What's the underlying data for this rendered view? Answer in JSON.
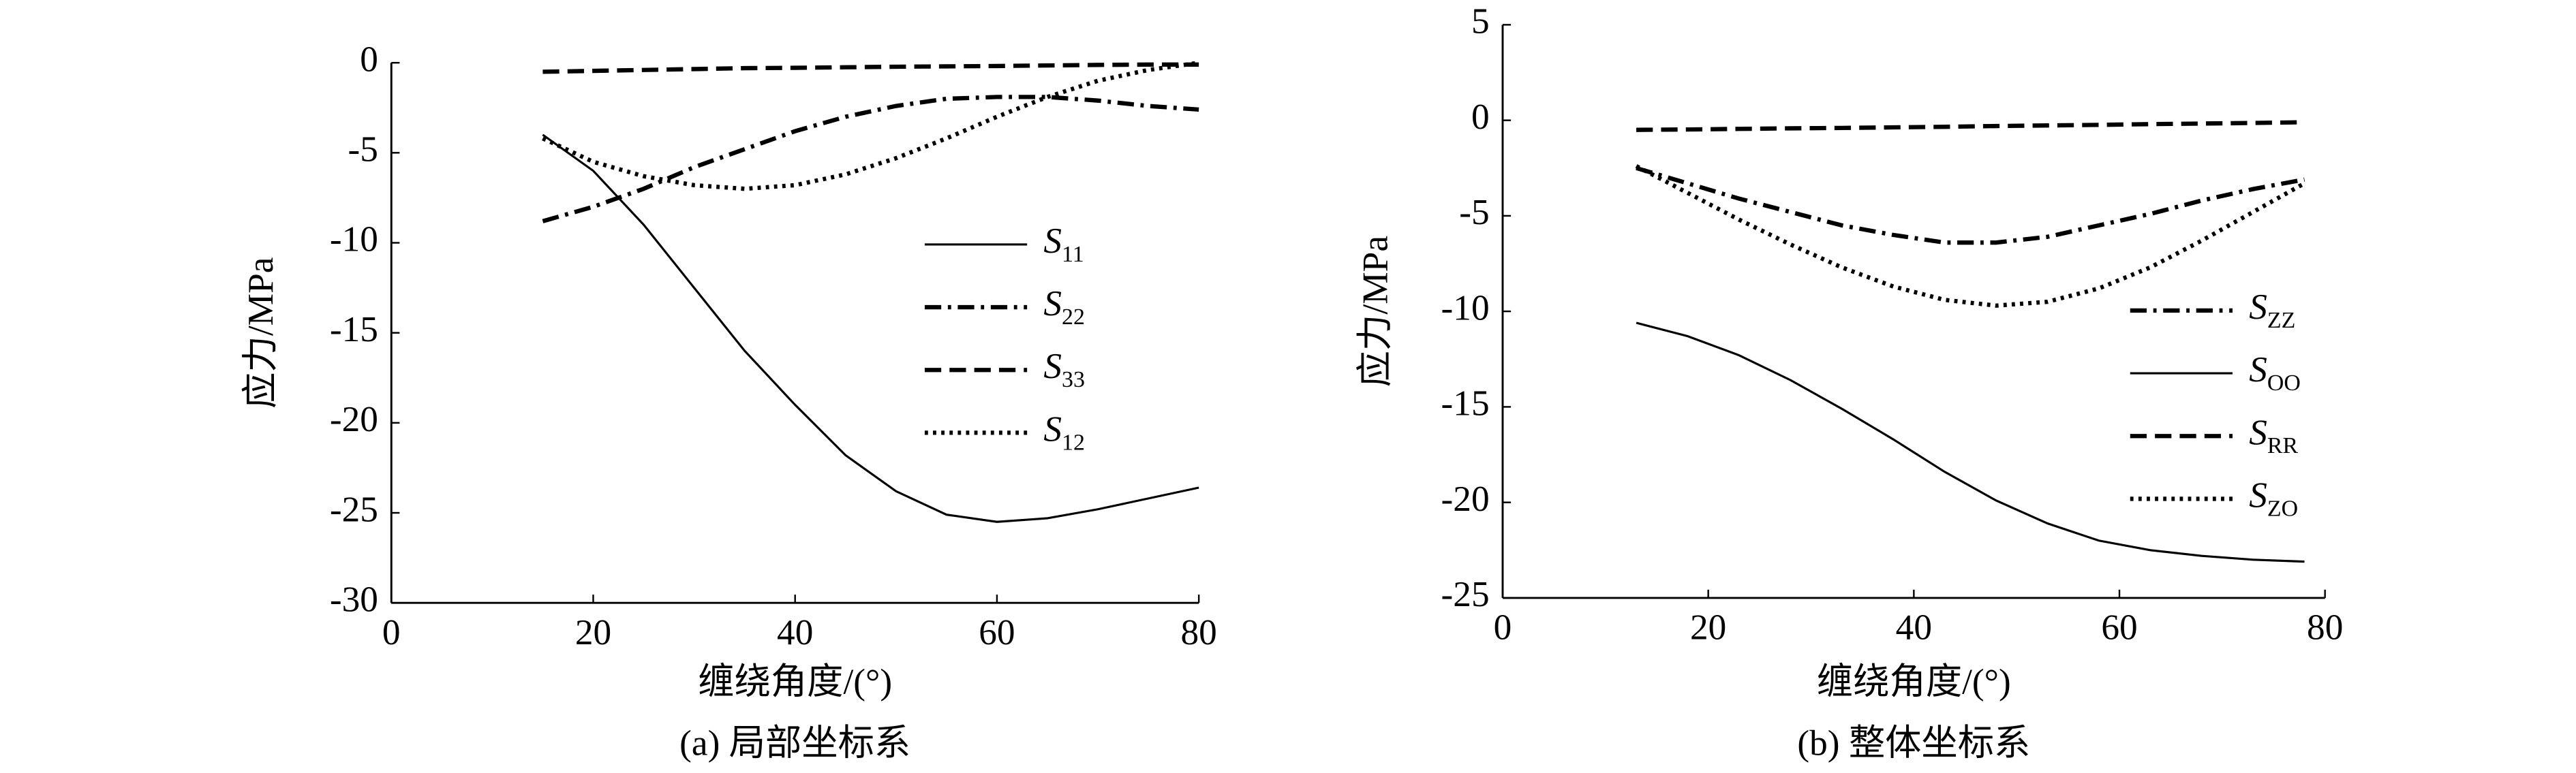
{
  "chart_data": [
    {
      "type": "line",
      "caption": "(a) 局部坐标系",
      "xlabel": "缠绕角度/(°)",
      "ylabel": "应力/MPa",
      "x": [
        15,
        20,
        25,
        30,
        35,
        40,
        45,
        50,
        55,
        60,
        65,
        70,
        75,
        80
      ],
      "xlim": [
        0,
        80
      ],
      "xticks": [
        0,
        20,
        40,
        60,
        80
      ],
      "ylim": [
        -30,
        0
      ],
      "yticks": [
        -30,
        -25,
        -20,
        -15,
        -10,
        -5,
        0
      ],
      "legend": "center right",
      "series": [
        {
          "name": "S11",
          "color": "#000000",
          "dash": "solid",
          "values": [
            -4,
            -6,
            -9,
            -12.5,
            -16,
            -19,
            -21.8,
            -23.8,
            -25.1,
            -25.5,
            -25.3,
            -24.8,
            -24.2,
            -23.6
          ]
        },
        {
          "name": "S22",
          "color": "#000000",
          "dash": "dashdot",
          "values": [
            -8.8,
            -8,
            -7,
            -5.8,
            -4.8,
            -3.8,
            -3,
            -2.4,
            -2,
            -1.9,
            -1.9,
            -2.1,
            -2.4,
            -2.6
          ]
        },
        {
          "name": "S33",
          "color": "#000000",
          "dash": "dashed",
          "values": [
            -0.5,
            -0.45,
            -0.4,
            -0.35,
            -0.3,
            -0.28,
            -0.25,
            -0.22,
            -0.2,
            -0.18,
            -0.15,
            -0.12,
            -0.1,
            -0.1
          ]
        },
        {
          "name": "S12",
          "color": "#000000",
          "dash": "dotted",
          "values": [
            -4.2,
            -5.5,
            -6.3,
            -6.8,
            -7,
            -6.8,
            -6.2,
            -5.3,
            -4.2,
            -3,
            -1.9,
            -1,
            -0.4,
            0
          ]
        }
      ]
    },
    {
      "type": "line",
      "caption": "(b) 整体坐标系",
      "xlabel": "缠绕角度/(°)",
      "ylabel": "应力/MPa",
      "x": [
        13,
        18,
        23,
        28,
        33,
        38,
        43,
        48,
        53,
        58,
        63,
        68,
        73,
        78
      ],
      "xlim": [
        0,
        80
      ],
      "xticks": [
        0,
        20,
        40,
        60,
        80
      ],
      "ylim": [
        -25,
        5
      ],
      "yticks": [
        -25,
        -20,
        -15,
        -10,
        -5,
        0,
        5
      ],
      "legend": "lower right",
      "series": [
        {
          "name": "SZZ",
          "color": "#000000",
          "dash": "dashdot",
          "values": [
            -2.5,
            -3.3,
            -4.1,
            -4.8,
            -5.5,
            -6,
            -6.4,
            -6.4,
            -6.1,
            -5.5,
            -4.9,
            -4.2,
            -3.6,
            -3.1
          ]
        },
        {
          "name": "SOO",
          "color": "#000000",
          "dash": "solid",
          "values": [
            -10.6,
            -11.3,
            -12.3,
            -13.6,
            -15.1,
            -16.7,
            -18.4,
            -19.9,
            -21.1,
            -22,
            -22.5,
            -22.8,
            -23,
            -23.1
          ]
        },
        {
          "name": "SRR",
          "color": "#000000",
          "dash": "dashed",
          "values": [
            -0.5,
            -0.48,
            -0.45,
            -0.42,
            -0.4,
            -0.37,
            -0.34,
            -0.3,
            -0.27,
            -0.24,
            -0.2,
            -0.17,
            -0.14,
            -0.1
          ]
        },
        {
          "name": "SZO",
          "color": "#000000",
          "dash": "dotted",
          "values": [
            -2.4,
            -3.8,
            -5.2,
            -6.5,
            -7.7,
            -8.7,
            -9.4,
            -9.7,
            -9.5,
            -8.8,
            -7.7,
            -6.3,
            -4.8,
            -3.3
          ]
        }
      ]
    }
  ]
}
